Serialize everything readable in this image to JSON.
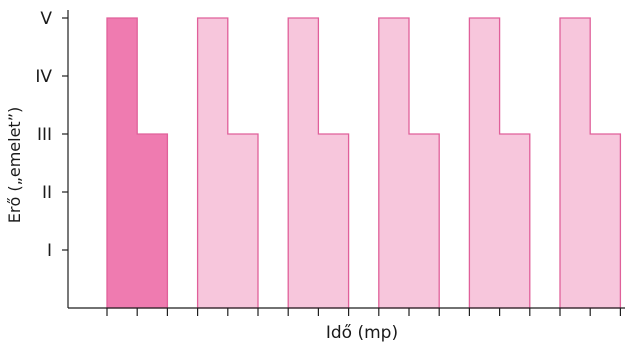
{
  "chart_data": {
    "type": "step-area",
    "xlabel": "Idő (mp)",
    "ylabel": "Erő („emelet”)",
    "y_levels": [
      "I",
      "II",
      "III",
      "IV",
      "V"
    ],
    "ylim": [
      0,
      5
    ],
    "x_ticks": 19,
    "pulses": [
      {
        "segments": [
          {
            "from": 0,
            "to": 1,
            "level": 5
          },
          {
            "from": 1,
            "to": 2,
            "level": 3
          }
        ],
        "highlighted": true
      },
      {
        "segments": [
          {
            "from": 3,
            "to": 4,
            "level": 5
          },
          {
            "from": 4,
            "to": 5,
            "level": 3
          }
        ],
        "highlighted": false
      },
      {
        "segments": [
          {
            "from": 6,
            "to": 7,
            "level": 5
          },
          {
            "from": 7,
            "to": 8,
            "level": 3
          }
        ],
        "highlighted": false
      },
      {
        "segments": [
          {
            "from": 9,
            "to": 10,
            "level": 5
          },
          {
            "from": 10,
            "to": 11,
            "level": 3
          }
        ],
        "highlighted": false
      },
      {
        "segments": [
          {
            "from": 12,
            "to": 13,
            "level": 5
          },
          {
            "from": 13,
            "to": 14,
            "level": 3
          }
        ],
        "highlighted": false
      },
      {
        "segments": [
          {
            "from": 15,
            "to": 16,
            "level": 5
          },
          {
            "from": 16,
            "to": 17,
            "level": 3
          }
        ],
        "highlighted": false
      }
    ],
    "colors": {
      "highlight_fill": "#ef7bb0",
      "fill": "#f7c6dc",
      "stroke": "#e0609a"
    }
  }
}
